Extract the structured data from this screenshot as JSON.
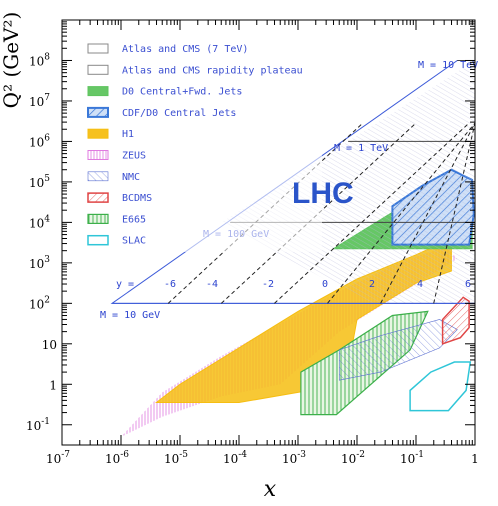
{
  "chart_data": {
    "type": "scatter",
    "title": "",
    "xlabel": "x",
    "ylabel": "Q² (GeV²)",
    "x_scale": "log",
    "y_scale": "log",
    "xlim_exp": [
      -7,
      0
    ],
    "ylim_exp": [
      -1.5,
      9
    ],
    "x_ticks": [
      {
        "exp": -7,
        "base": "10",
        "sup": "-7"
      },
      {
        "exp": -6,
        "base": "10",
        "sup": "-6"
      },
      {
        "exp": -5,
        "base": "10",
        "sup": "-5"
      },
      {
        "exp": -4,
        "base": "10",
        "sup": "-4"
      },
      {
        "exp": -3,
        "base": "10",
        "sup": "-3"
      },
      {
        "exp": -2,
        "base": "10",
        "sup": "-2"
      },
      {
        "exp": -1,
        "base": "10",
        "sup": "-1"
      },
      {
        "exp": 0,
        "base": "1",
        "sup": ""
      }
    ],
    "y_ticks": [
      {
        "exp": -1,
        "base": "10",
        "sup": "-1"
      },
      {
        "exp": 0,
        "base": "1",
        "sup": ""
      },
      {
        "exp": 1,
        "base": "10",
        "sup": ""
      },
      {
        "exp": 2,
        "base": "10",
        "sup": "2"
      },
      {
        "exp": 3,
        "base": "10",
        "sup": "3"
      },
      {
        "exp": 4,
        "base": "10",
        "sup": "4"
      },
      {
        "exp": 5,
        "base": "10",
        "sup": "5"
      },
      {
        "exp": 6,
        "base": "10",
        "sup": "6"
      },
      {
        "exp": 7,
        "base": "10",
        "sup": "7"
      },
      {
        "exp": 8,
        "base": "10",
        "sup": "8"
      }
    ],
    "legend": [
      {
        "label": "Atlas and CMS (7 TeV)",
        "color": "#888888",
        "style": "outline"
      },
      {
        "label": "Atlas and CMS rapidity plateau",
        "color": "#888888",
        "style": "outline"
      },
      {
        "label": "D0 Central+Fwd. Jets",
        "color": "#5ec45e",
        "style": "solid"
      },
      {
        "label": "CDF/D0 Central Jets",
        "color": "#3a78d8",
        "style": "hatch-blue"
      },
      {
        "label": "H1",
        "color": "#f6be12",
        "style": "solid"
      },
      {
        "label": "ZEUS",
        "color": "#e07ae0",
        "style": "vlines"
      },
      {
        "label": "NMC",
        "color": "#5a6fd1",
        "style": "hatch-thin"
      },
      {
        "label": "BCDMS",
        "color": "#e04545",
        "style": "hatch-red"
      },
      {
        "label": "E665",
        "color": "#3cb04a",
        "style": "vgrid"
      },
      {
        "label": "SLAC",
        "color": "#2fc6d8",
        "style": "outline-cyan"
      }
    ],
    "annotations": {
      "lhc": "LHC",
      "mass_labels": [
        "M = 10 GeV",
        "M = 100 GeV",
        "M = 1 TeV",
        "M = 10 TeV"
      ],
      "rapidity_prefix": "y =",
      "rapidity_labels": [
        "-6",
        "-4",
        "-2",
        "0",
        "2",
        "4",
        "6"
      ]
    },
    "regions": [
      {
        "name": "H1",
        "color": "#f6be12",
        "points": [
          [
            -5.4,
            -0.45
          ],
          [
            -5.0,
            0.0
          ],
          [
            -4.0,
            0.9
          ],
          [
            -3.0,
            1.8
          ],
          [
            -2.0,
            2.6
          ],
          [
            -1.0,
            3.2
          ],
          [
            -0.4,
            3.6
          ],
          [
            -0.4,
            2.8
          ],
          [
            -1.0,
            2.5
          ],
          [
            -2.0,
            1.6
          ],
          [
            -2.2,
            0.0
          ],
          [
            -3.0,
            -0.2
          ],
          [
            -4.0,
            -0.45
          ]
        ]
      },
      {
        "name": "ZEUS",
        "color": "#e07ae0",
        "points": [
          [
            -6.0,
            -1.3
          ],
          [
            -5.3,
            -0.2
          ],
          [
            -4.3,
            0.7
          ],
          [
            -3.3,
            1.5
          ],
          [
            -2.3,
            2.3
          ],
          [
            -1.3,
            3.0
          ],
          [
            -0.5,
            3.4
          ],
          [
            -0.3,
            3.1
          ],
          [
            -1.3,
            2.2
          ],
          [
            -2.3,
            1.3
          ],
          [
            -3.3,
            0.0
          ],
          [
            -4.3,
            -0.3
          ],
          [
            -5.3,
            -0.8
          ]
        ]
      },
      {
        "name": "D0 Central+Fwd. Jets",
        "color": "#5ec45e",
        "points": [
          [
            -2.4,
            3.35
          ],
          [
            -1.6,
            3.35
          ],
          [
            -0.6,
            3.35
          ],
          [
            -0.05,
            3.35
          ],
          [
            -0.05,
            4.4
          ],
          [
            -0.3,
            4.85
          ],
          [
            -0.9,
            4.55
          ],
          [
            -1.4,
            4.25
          ]
        ]
      },
      {
        "name": "CDF/D0 Central Jets",
        "color": "#3a78d8",
        "points": [
          [
            -1.4,
            3.45
          ],
          [
            -0.1,
            3.45
          ],
          [
            -0.02,
            4.2
          ],
          [
            -0.05,
            5.05
          ],
          [
            -0.4,
            5.3
          ],
          [
            -0.9,
            4.9
          ],
          [
            -1.4,
            4.4
          ]
        ]
      },
      {
        "name": "NMC",
        "color": "#5a6fd1",
        "points": [
          [
            -2.3,
            0.1
          ],
          [
            -1.6,
            0.3
          ],
          [
            -0.6,
            0.9
          ],
          [
            -0.3,
            1.35
          ],
          [
            -0.6,
            1.6
          ],
          [
            -1.6,
            1.2
          ],
          [
            -2.3,
            0.85
          ]
        ]
      },
      {
        "name": "BCDMS",
        "color": "#e04545",
        "points": [
          [
            -0.55,
            1.0
          ],
          [
            -0.25,
            1.15
          ],
          [
            -0.1,
            1.4
          ],
          [
            -0.1,
            2.05
          ],
          [
            -0.2,
            2.15
          ],
          [
            -0.55,
            1.6
          ]
        ]
      },
      {
        "name": "E665",
        "color": "#3cb04a",
        "points": [
          [
            -2.95,
            -0.75
          ],
          [
            -2.35,
            -0.75
          ],
          [
            -1.1,
            0.85
          ],
          [
            -0.8,
            1.8
          ],
          [
            -1.4,
            1.7
          ],
          [
            -2.3,
            0.85
          ],
          [
            -2.95,
            0.3
          ]
        ]
      },
      {
        "name": "SLAC",
        "color": "#2fc6d8",
        "points": [
          [
            -1.1,
            -0.65
          ],
          [
            -0.45,
            -0.65
          ],
          [
            -0.15,
            -0.15
          ],
          [
            -0.08,
            0.55
          ],
          [
            -0.35,
            0.55
          ],
          [
            -0.75,
            0.3
          ],
          [
            -1.1,
            -0.15
          ]
        ]
      }
    ]
  }
}
